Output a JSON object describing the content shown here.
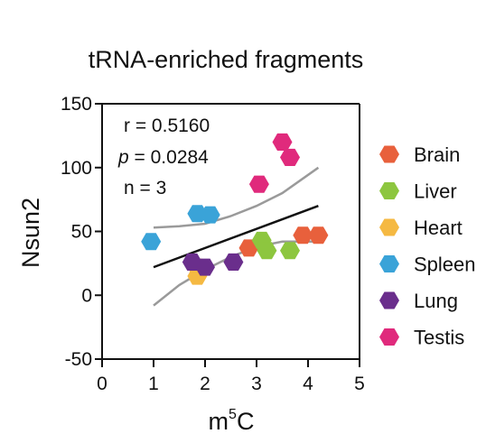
{
  "chart_data": {
    "type": "scatter",
    "title": "tRNA-enriched fragments",
    "xlabel_base": "m",
    "xlabel_sup": "5",
    "xlabel_tail": "C",
    "ylabel": "Nsun2",
    "xlim": [
      0,
      5
    ],
    "ylim": [
      -50,
      150
    ],
    "xticks": [
      "0",
      "1",
      "2",
      "3",
      "4",
      "5"
    ],
    "yticks": [
      "-50",
      "0",
      "50",
      "100",
      "150"
    ],
    "stats": {
      "r": "r = 0.5160",
      "p_symbol": "p",
      "p_value": " = 0.0284",
      "n": "n = 3"
    },
    "series": [
      {
        "name": "Brain",
        "color": "#E8603C",
        "points": [
          [
            2.85,
            37
          ],
          [
            3.9,
            47
          ],
          [
            4.2,
            47
          ]
        ]
      },
      {
        "name": "Liver",
        "color": "#8DC63F",
        "points": [
          [
            3.1,
            43
          ],
          [
            3.2,
            35
          ],
          [
            3.65,
            35
          ]
        ]
      },
      {
        "name": "Heart",
        "color": "#F5B942",
        "points": [
          [
            1.85,
            22
          ],
          [
            1.85,
            15
          ]
        ]
      },
      {
        "name": "Spleen",
        "color": "#3AA3D8",
        "points": [
          [
            0.95,
            42
          ],
          [
            1.85,
            64
          ],
          [
            2.1,
            63
          ]
        ]
      },
      {
        "name": "Lung",
        "color": "#6A2E8C",
        "points": [
          [
            1.75,
            26
          ],
          [
            2.0,
            22
          ],
          [
            2.55,
            26
          ]
        ]
      },
      {
        "name": "Testis",
        "color": "#E02A7C",
        "points": [
          [
            3.05,
            87
          ],
          [
            3.5,
            120
          ],
          [
            3.65,
            108
          ]
        ]
      }
    ],
    "fit": {
      "start": [
        1.0,
        22
      ],
      "end": [
        4.2,
        70
      ]
    },
    "ci_upper": [
      [
        1.0,
        53
      ],
      [
        1.5,
        54
      ],
      [
        2.0,
        56
      ],
      [
        2.5,
        62
      ],
      [
        3.0,
        70
      ],
      [
        3.5,
        80
      ],
      [
        4.2,
        100
      ]
    ],
    "ci_lower": [
      [
        1.0,
        -8
      ],
      [
        1.5,
        8
      ],
      [
        2.0,
        20
      ],
      [
        2.5,
        30
      ],
      [
        3.0,
        38
      ],
      [
        3.5,
        42
      ],
      [
        4.2,
        42
      ]
    ]
  }
}
